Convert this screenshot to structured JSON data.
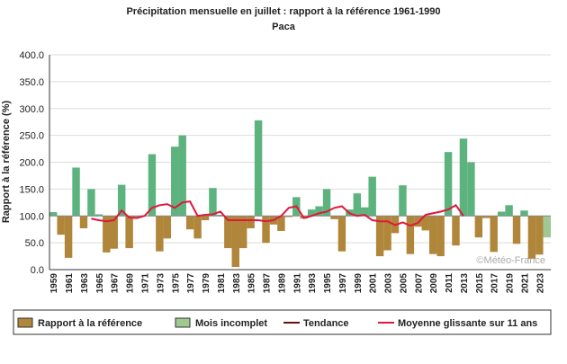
{
  "chart_data": {
    "type": "bar",
    "title": "Précipitation mensuelle en juillet : rapport à la référence 1961-1990",
    "subtitle": "Paca",
    "y_label": "Rapport à la référence (%)",
    "watermark": "©Météo-France",
    "categories": [
      "1959",
      "1960",
      "1961",
      "1962",
      "1963",
      "1964",
      "1965",
      "1966",
      "1967",
      "1968",
      "1969",
      "1970",
      "1971",
      "1972",
      "1973",
      "1974",
      "1975",
      "1976",
      "1977",
      "1978",
      "1979",
      "1980",
      "1981",
      "1982",
      "1983",
      "1984",
      "1985",
      "1986",
      "1987",
      "1988",
      "1989",
      "1990",
      "1991",
      "1992",
      "1993",
      "1994",
      "1995",
      "1996",
      "1997",
      "1998",
      "1999",
      "2000",
      "2001",
      "2002",
      "2003",
      "2004",
      "2005",
      "2006",
      "2007",
      "2008",
      "2009",
      "2010",
      "2011",
      "2012",
      "2013",
      "2014",
      "2015",
      "2016",
      "2017",
      "2018",
      "2019",
      "2020",
      "2021",
      "2022",
      "2023",
      "2024"
    ],
    "xtick_every": 2,
    "baseline": 100,
    "color_above": "#5db37e",
    "color_below": "#b0863a",
    "series": [
      {
        "name": "Rapport à la référence",
        "color": "#b0863a",
        "kind": "bar",
        "values": [
          107,
          65,
          22,
          190,
          77,
          150,
          103,
          32,
          39,
          158,
          40,
          98,
          101,
          215,
          34,
          58,
          229,
          250,
          75,
          58,
          92,
          152,
          102,
          40,
          5,
          40,
          77,
          278,
          50,
          84,
          72,
          98,
          135,
          95,
          112,
          118,
          150,
          94,
          34,
          112,
          142,
          116,
          173,
          25,
          36,
          68,
          157,
          29,
          80,
          73,
          29,
          25,
          219,
          45,
          244,
          200,
          60,
          96,
          33,
          108,
          120,
          48,
          110,
          20,
          28,
          null
        ]
      },
      {
        "name": "Mois incomplet",
        "color": "#9fc893",
        "kind": "bar",
        "values": [
          null,
          null,
          null,
          null,
          null,
          null,
          null,
          null,
          null,
          null,
          null,
          null,
          null,
          null,
          null,
          null,
          null,
          null,
          null,
          null,
          null,
          null,
          null,
          null,
          null,
          null,
          null,
          null,
          null,
          null,
          null,
          null,
          null,
          null,
          null,
          null,
          null,
          null,
          null,
          null,
          null,
          null,
          null,
          null,
          null,
          null,
          null,
          null,
          null,
          null,
          null,
          null,
          null,
          null,
          null,
          null,
          null,
          null,
          null,
          null,
          null,
          null,
          null,
          null,
          null,
          60
        ]
      },
      {
        "name": "Tendance",
        "color": "#6b1010",
        "kind": "line",
        "values": [
          null,
          null,
          null,
          null,
          null,
          null,
          null,
          null,
          null,
          null,
          null,
          null,
          null,
          null,
          null,
          null,
          null,
          null,
          null,
          null,
          null,
          null,
          null,
          null,
          null,
          null,
          null,
          null,
          null,
          null,
          null,
          null,
          null,
          null,
          null,
          null,
          null,
          null,
          null,
          null,
          null,
          null,
          null,
          null,
          null,
          null,
          null,
          null,
          null,
          null,
          null,
          null,
          null,
          null,
          null,
          null,
          null,
          null,
          null,
          null,
          null,
          null,
          null,
          null,
          null,
          null
        ]
      },
      {
        "name": "Moyenne glissante sur 11 ans",
        "color": "#e0183c",
        "kind": "line",
        "values": [
          null,
          null,
          null,
          null,
          null,
          95,
          92,
          90,
          92,
          110,
          97,
          96,
          100,
          115,
          120,
          122,
          115,
          125,
          127,
          100,
          102,
          103,
          108,
          92,
          92,
          92,
          92,
          92,
          90,
          92,
          100,
          115,
          118,
          96,
          100,
          105,
          108,
          115,
          118,
          105,
          100,
          102,
          92,
          90,
          90,
          83,
          88,
          82,
          87,
          102,
          105,
          108,
          112,
          120,
          100,
          null,
          null,
          null,
          null,
          null,
          null,
          null,
          null,
          null,
          null,
          null
        ]
      }
    ],
    "ylim": [
      0,
      400
    ],
    "yticks": [
      {
        "value": 0,
        "label": "0.0"
      },
      {
        "value": 50,
        "label": "50.0"
      },
      {
        "value": 100,
        "label": "100.0"
      },
      {
        "value": 150,
        "label": "150.0"
      },
      {
        "value": 200,
        "label": "200.0"
      },
      {
        "value": 250,
        "label": "250.0"
      },
      {
        "value": 300,
        "label": "300.0"
      },
      {
        "value": 350,
        "label": "350.0"
      },
      {
        "value": 400,
        "label": "400.0"
      }
    ],
    "grid": true
  }
}
